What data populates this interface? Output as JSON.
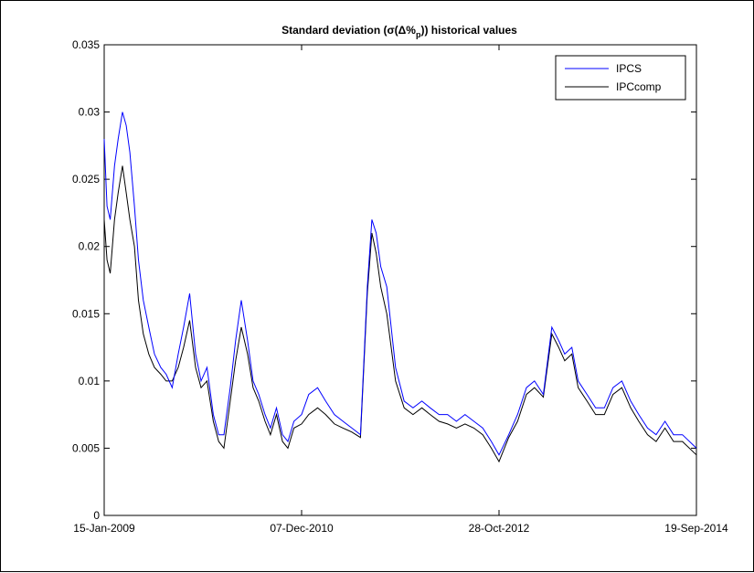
{
  "chart_data": {
    "type": "line",
    "title": "Standard deviation (σ(Δ%p)) historical values",
    "title_parts": {
      "main": "Standard deviation (σ(Δ%",
      "sub": "p",
      "end": ")) historical values"
    },
    "xlabel": "",
    "ylabel": "",
    "x_range": [
      "2009-01-15",
      "2014-09-19"
    ],
    "ylim": [
      0,
      0.035
    ],
    "y_ticks": [
      0,
      0.005,
      0.01,
      0.015,
      0.02,
      0.025,
      0.03,
      0.035
    ],
    "y_tick_labels": [
      "0",
      "0.005",
      "0.01",
      "0.015",
      "0.02",
      "0.025",
      "0.03",
      "0.035"
    ],
    "x_ticks": [
      "2009-01-15",
      "2010-12-07",
      "2012-10-28",
      "2014-09-19"
    ],
    "x_tick_labels": [
      "15-Jan-2009",
      "07-Dec-2010",
      "28-Oct-2012",
      "19-Sep-2014"
    ],
    "grid": false,
    "legend_position": "top-right",
    "series": [
      {
        "name": "IPCS",
        "color": "#0000ff",
        "x": [
          "2009-01-15",
          "2009-01-25",
          "2009-02-05",
          "2009-02-20",
          "2009-03-05",
          "2009-03-20",
          "2009-04-02",
          "2009-04-15",
          "2009-05-01",
          "2009-05-15",
          "2009-06-01",
          "2009-06-20",
          "2009-07-10",
          "2009-08-01",
          "2009-08-20",
          "2009-09-10",
          "2009-10-01",
          "2009-10-20",
          "2009-11-10",
          "2009-12-01",
          "2009-12-20",
          "2010-01-10",
          "2010-02-01",
          "2010-02-20",
          "2010-03-10",
          "2010-04-01",
          "2010-04-20",
          "2010-05-10",
          "2010-06-01",
          "2010-06-20",
          "2010-07-10",
          "2010-08-01",
          "2010-08-20",
          "2010-09-10",
          "2010-10-01",
          "2010-10-20",
          "2010-11-10",
          "2010-12-07",
          "2011-01-01",
          "2011-02-01",
          "2011-03-01",
          "2011-04-01",
          "2011-05-01",
          "2011-06-01",
          "2011-07-01",
          "2011-07-25",
          "2011-08-10",
          "2011-08-25",
          "2011-09-10",
          "2011-10-01",
          "2011-11-01",
          "2011-12-01",
          "2012-01-01",
          "2012-02-01",
          "2012-03-01",
          "2012-04-01",
          "2012-05-01",
          "2012-06-01",
          "2012-07-01",
          "2012-08-01",
          "2012-09-01",
          "2012-10-01",
          "2012-10-28",
          "2012-12-01",
          "2013-01-01",
          "2013-02-01",
          "2013-03-01",
          "2013-04-01",
          "2013-05-01",
          "2013-05-25",
          "2013-06-15",
          "2013-07-10",
          "2013-08-01",
          "2013-09-01",
          "2013-10-01",
          "2013-11-01",
          "2013-12-01",
          "2014-01-01",
          "2014-02-01",
          "2014-03-01",
          "2014-04-01",
          "2014-05-01",
          "2014-06-01",
          "2014-07-01",
          "2014-08-01",
          "2014-09-19"
        ],
        "y": [
          0.028,
          0.023,
          0.022,
          0.026,
          0.028,
          0.03,
          0.029,
          0.027,
          0.023,
          0.019,
          0.016,
          0.014,
          0.012,
          0.011,
          0.0105,
          0.0095,
          0.012,
          0.014,
          0.0165,
          0.012,
          0.01,
          0.011,
          0.0075,
          0.006,
          0.006,
          0.0095,
          0.013,
          0.016,
          0.013,
          0.01,
          0.009,
          0.0075,
          0.0065,
          0.008,
          0.006,
          0.0055,
          0.007,
          0.0075,
          0.009,
          0.0095,
          0.0085,
          0.0075,
          0.007,
          0.0065,
          0.006,
          0.017,
          0.022,
          0.021,
          0.0185,
          0.017,
          0.011,
          0.0085,
          0.008,
          0.0085,
          0.008,
          0.0075,
          0.0075,
          0.007,
          0.0075,
          0.007,
          0.0065,
          0.0055,
          0.0045,
          0.006,
          0.0075,
          0.0095,
          0.01,
          0.009,
          0.014,
          0.013,
          0.012,
          0.0125,
          0.01,
          0.009,
          0.008,
          0.008,
          0.0095,
          0.01,
          0.0085,
          0.0075,
          0.0065,
          0.006,
          0.007,
          0.006,
          0.006,
          0.005
        ]
      },
      {
        "name": "IPCcomp",
        "color": "#000000",
        "x": [
          "2009-01-15",
          "2009-01-25",
          "2009-02-05",
          "2009-02-20",
          "2009-03-05",
          "2009-03-20",
          "2009-04-02",
          "2009-04-15",
          "2009-05-01",
          "2009-05-15",
          "2009-06-01",
          "2009-06-20",
          "2009-07-10",
          "2009-08-01",
          "2009-08-20",
          "2009-09-10",
          "2009-10-01",
          "2009-10-20",
          "2009-11-10",
          "2009-12-01",
          "2009-12-20",
          "2010-01-10",
          "2010-02-01",
          "2010-02-20",
          "2010-03-10",
          "2010-04-01",
          "2010-04-20",
          "2010-05-10",
          "2010-06-01",
          "2010-06-20",
          "2010-07-10",
          "2010-08-01",
          "2010-08-20",
          "2010-09-10",
          "2010-10-01",
          "2010-10-20",
          "2010-11-10",
          "2010-12-07",
          "2011-01-01",
          "2011-02-01",
          "2011-03-01",
          "2011-04-01",
          "2011-05-01",
          "2011-06-01",
          "2011-07-01",
          "2011-07-25",
          "2011-08-10",
          "2011-08-25",
          "2011-09-10",
          "2011-10-01",
          "2011-11-01",
          "2011-12-01",
          "2012-01-01",
          "2012-02-01",
          "2012-03-01",
          "2012-04-01",
          "2012-05-01",
          "2012-06-01",
          "2012-07-01",
          "2012-08-01",
          "2012-09-01",
          "2012-10-01",
          "2012-10-28",
          "2012-12-01",
          "2013-01-01",
          "2013-02-01",
          "2013-03-01",
          "2013-04-01",
          "2013-05-01",
          "2013-05-25",
          "2013-06-15",
          "2013-07-10",
          "2013-08-01",
          "2013-09-01",
          "2013-10-01",
          "2013-11-01",
          "2013-12-01",
          "2014-01-01",
          "2014-02-01",
          "2014-03-01",
          "2014-04-01",
          "2014-05-01",
          "2014-06-01",
          "2014-07-01",
          "2014-08-01",
          "2014-09-19"
        ],
        "y": [
          0.022,
          0.019,
          0.018,
          0.022,
          0.024,
          0.026,
          0.024,
          0.022,
          0.02,
          0.016,
          0.0135,
          0.012,
          0.011,
          0.0105,
          0.01,
          0.01,
          0.011,
          0.0125,
          0.0145,
          0.011,
          0.0095,
          0.01,
          0.007,
          0.0055,
          0.005,
          0.0085,
          0.0115,
          0.014,
          0.012,
          0.0095,
          0.0085,
          0.007,
          0.006,
          0.0075,
          0.0055,
          0.005,
          0.0065,
          0.0068,
          0.0075,
          0.008,
          0.0075,
          0.0068,
          0.0065,
          0.0062,
          0.0058,
          0.0165,
          0.021,
          0.0195,
          0.017,
          0.015,
          0.01,
          0.008,
          0.0075,
          0.008,
          0.0075,
          0.007,
          0.0068,
          0.0065,
          0.0068,
          0.0065,
          0.006,
          0.005,
          0.004,
          0.0058,
          0.007,
          0.009,
          0.0095,
          0.0088,
          0.0135,
          0.0125,
          0.0115,
          0.012,
          0.0095,
          0.0085,
          0.0075,
          0.0075,
          0.009,
          0.0095,
          0.008,
          0.007,
          0.006,
          0.0055,
          0.0065,
          0.0055,
          0.0055,
          0.0045
        ]
      }
    ]
  }
}
